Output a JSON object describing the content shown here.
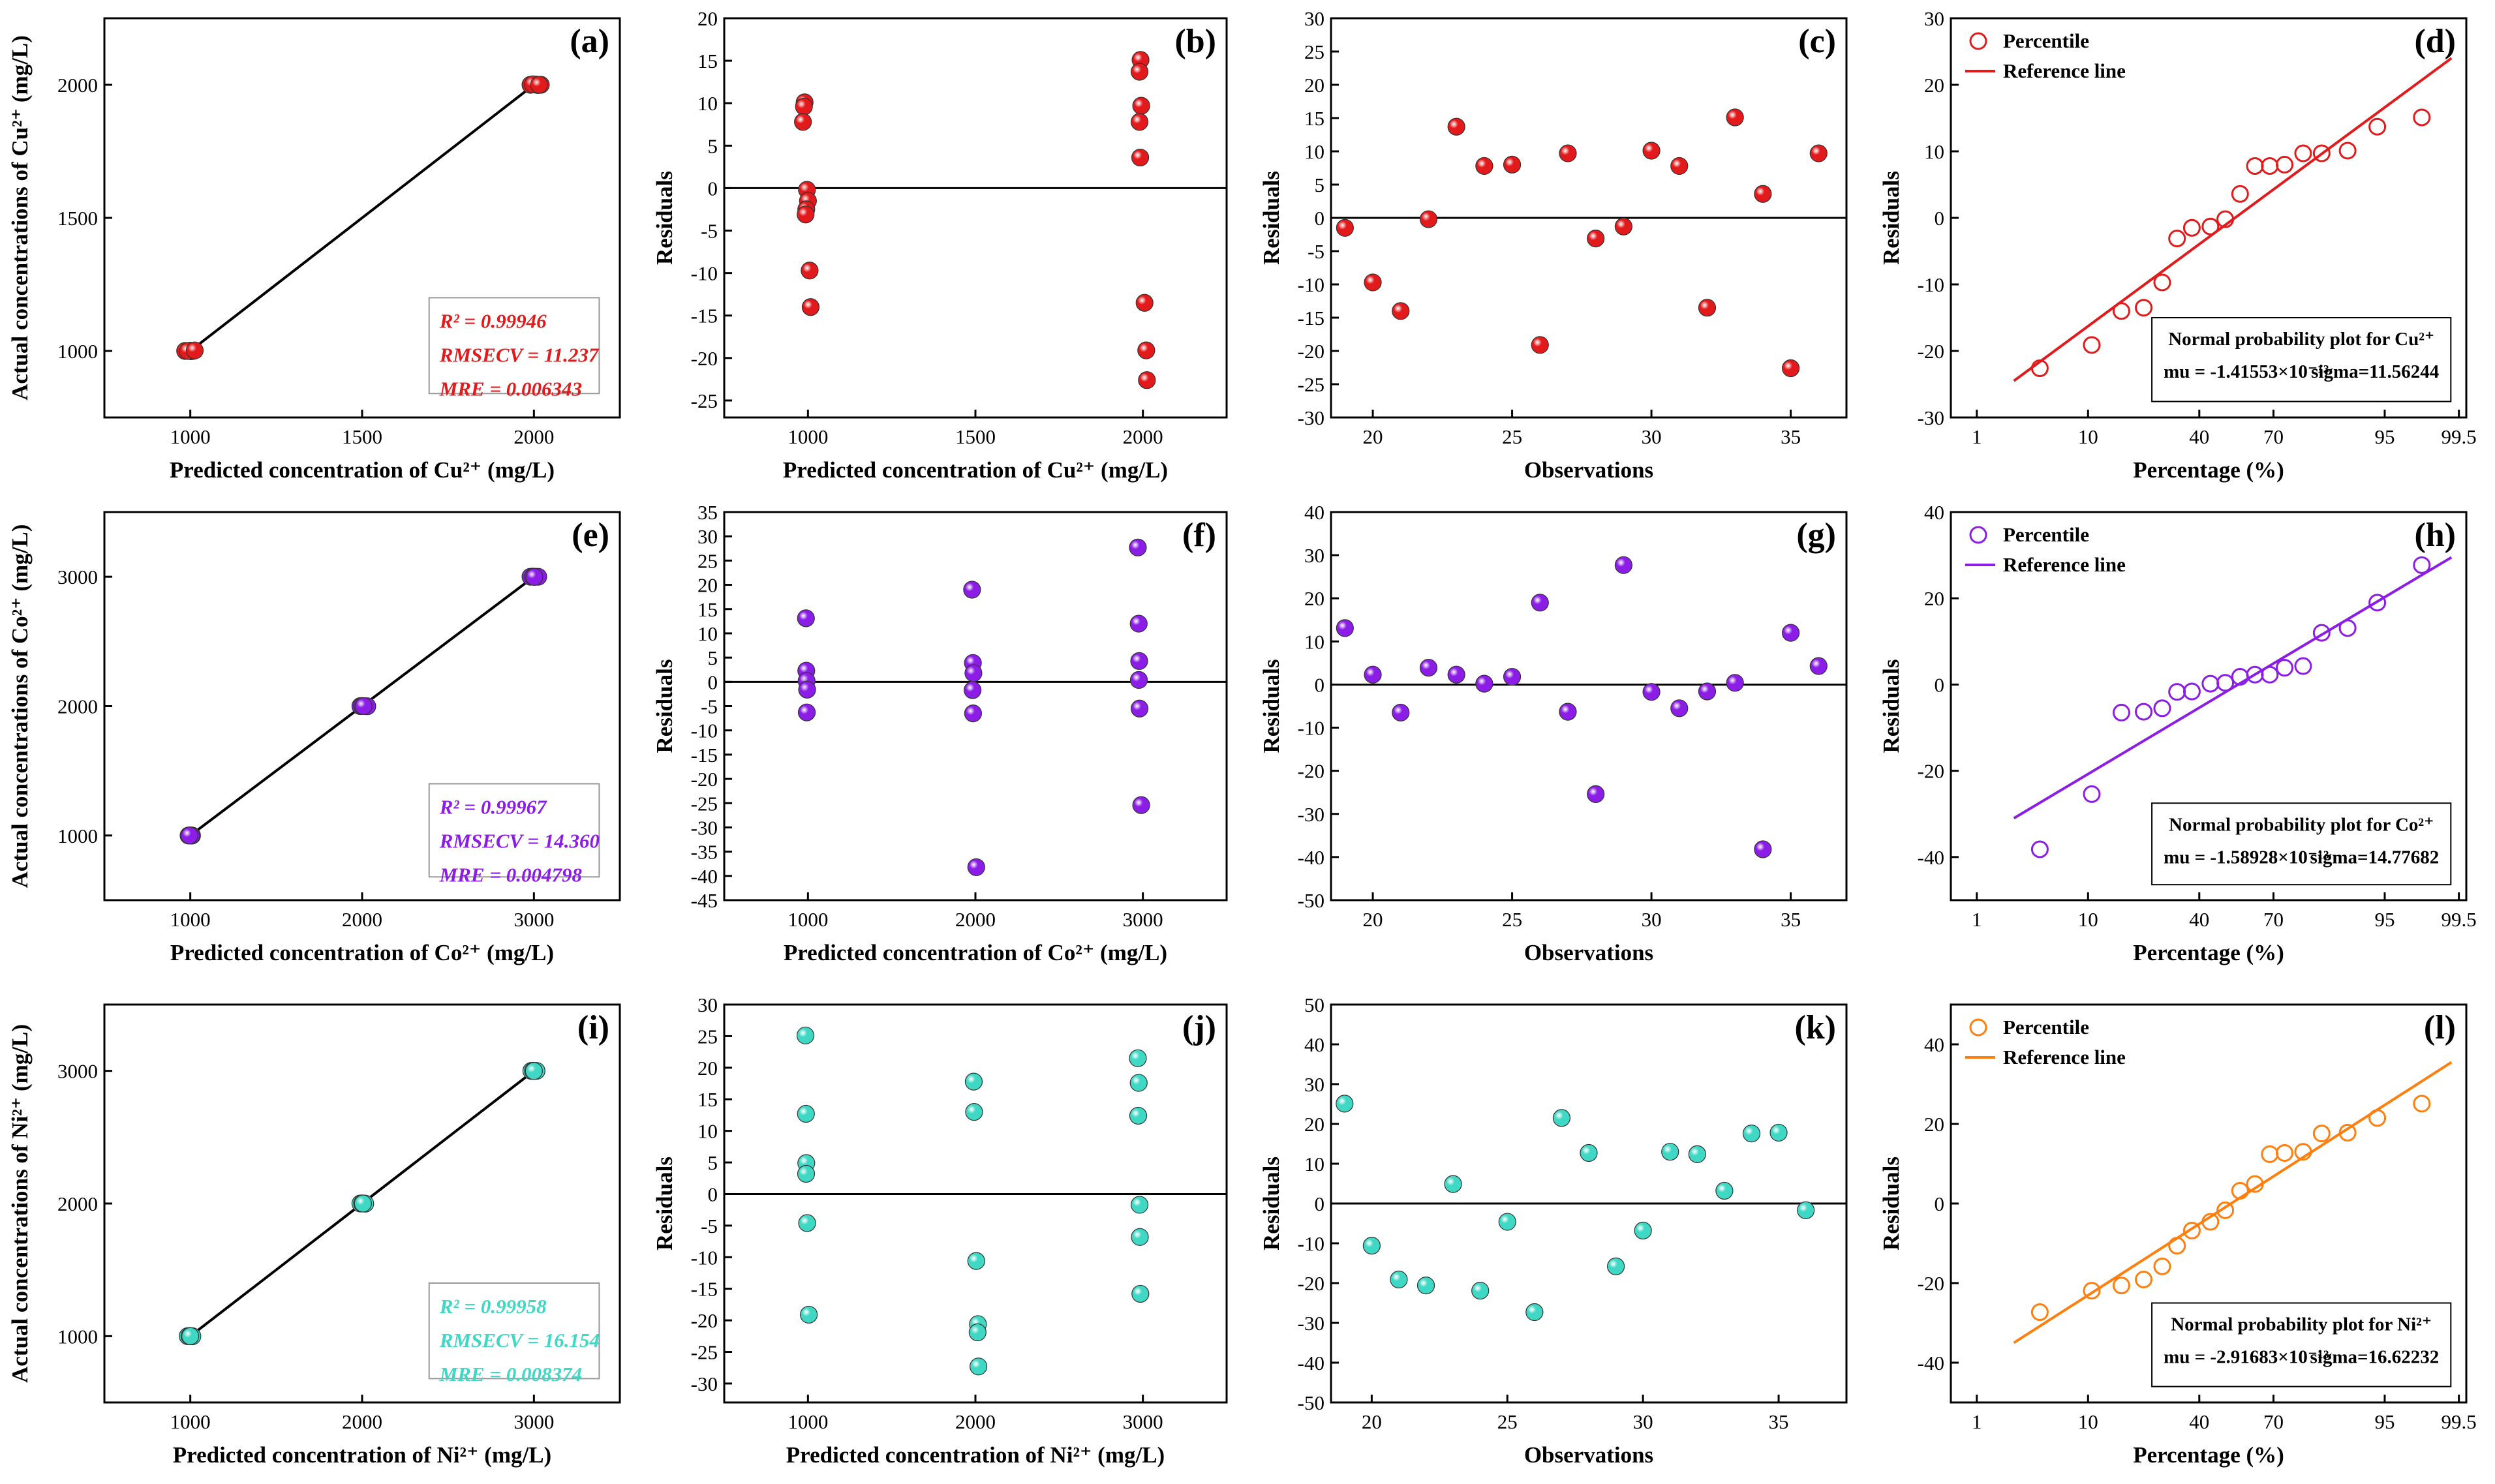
{
  "colors": {
    "cu": "#e31a1c",
    "co": "#8b1de6",
    "ni": "#3fd8c4",
    "ni_q": "#ff7f0e",
    "axis": "#000000"
  },
  "chart_data": [
    {
      "id": "a",
      "type": "scatter",
      "label": "(a)",
      "metal": "cu",
      "xlabel": "Predicted concentration of Cu²⁺ (mg/L)",
      "ylabel": "Actual concentrations of Cu²⁺ (mg/L)",
      "xlim": [
        750,
        2250
      ],
      "ylim": [
        750,
        2250
      ],
      "xticks": [
        1000,
        1500,
        2000
      ],
      "yticks": [
        1000,
        1500,
        2000
      ],
      "points": [
        [
          985,
          1000
        ],
        [
          1000,
          1001
        ],
        [
          1008,
          1000
        ],
        [
          1002,
          999
        ],
        [
          993,
          1000
        ],
        [
          1013,
          1002
        ],
        [
          1990,
          2000
        ],
        [
          2005,
          2001
        ],
        [
          2012,
          1999
        ],
        [
          2020,
          2000
        ],
        [
          1997,
          2002
        ],
        [
          2015,
          2000
        ]
      ],
      "fit_line": [
        [
          1000,
          1000
        ],
        [
          2000,
          2000
        ]
      ],
      "stats": [
        "R² = 0.99946",
        "RMSECV = 11.237",
        "MRE = 0.006343"
      ]
    },
    {
      "id": "b",
      "type": "scatter",
      "label": "(b)",
      "metal": "cu",
      "xlabel": "Predicted concentration of Cu²⁺ (mg/L)",
      "ylabel": "Residuals",
      "xlim": [
        750,
        2250
      ],
      "ylim": [
        -27,
        20
      ],
      "xticks": [
        1000,
        1500,
        2000
      ],
      "yticks": [
        -25,
        -20,
        -15,
        -10,
        -5,
        0,
        5,
        10,
        15,
        20
      ],
      "points": [
        [
          990,
          10.1
        ],
        [
          988,
          9.6
        ],
        [
          985,
          7.8
        ],
        [
          997,
          -0.2
        ],
        [
          1000,
          -1.5
        ],
        [
          995,
          -2.5
        ],
        [
          993,
          -3.1
        ],
        [
          1005,
          -9.7
        ],
        [
          1008,
          -14.0
        ],
        [
          1993,
          15.1
        ],
        [
          1990,
          13.7
        ],
        [
          1995,
          9.7
        ],
        [
          1990,
          7.8
        ],
        [
          1992,
          3.6
        ],
        [
          2005,
          -13.5
        ],
        [
          2010,
          -19.1
        ],
        [
          2012,
          -22.6
        ]
      ],
      "zero_line": true
    },
    {
      "id": "c",
      "type": "scatter",
      "label": "(c)",
      "metal": "cu",
      "xlabel": "Observations",
      "ylabel": "Residuals",
      "xlim": [
        18.5,
        37
      ],
      "ylim": [
        -30,
        30
      ],
      "xticks": [
        20,
        25,
        30,
        35
      ],
      "yticks": [
        -30,
        -25,
        -20,
        -15,
        -10,
        -5,
        0,
        5,
        10,
        15,
        20,
        25,
        30
      ],
      "points": [
        [
          19,
          -1.5
        ],
        [
          20,
          -9.7
        ],
        [
          21,
          -14.0
        ],
        [
          22,
          -0.2
        ],
        [
          23,
          13.7
        ],
        [
          24,
          7.8
        ],
        [
          25,
          8.0
        ],
        [
          26,
          -19.1
        ],
        [
          27,
          9.7
        ],
        [
          28,
          -3.1
        ],
        [
          29,
          -1.3
        ],
        [
          30,
          10.1
        ],
        [
          31,
          7.8
        ],
        [
          32,
          -13.5
        ],
        [
          33,
          15.1
        ],
        [
          34,
          3.6
        ],
        [
          35,
          -22.6
        ],
        [
          36,
          9.7
        ]
      ],
      "zero_line": true
    },
    {
      "id": "d",
      "type": "qq",
      "label": "(d)",
      "metal": "cu",
      "xlabel": "Percentage (%)",
      "ylabel": "Residuals",
      "xlim": [
        -0.7,
        13.2
      ],
      "ylim": [
        -30,
        30
      ],
      "xticks": [
        {
          "pos": 0,
          "label": "1"
        },
        {
          "pos": 3,
          "label": "10"
        },
        {
          "pos": 6,
          "label": "40"
        },
        {
          "pos": 8,
          "label": "70"
        },
        {
          "pos": 11,
          "label": "95"
        },
        {
          "pos": 13,
          "label": "99.5"
        }
      ],
      "yticks": [
        -30,
        -20,
        -10,
        0,
        10,
        20,
        30
      ],
      "points": [
        [
          1.7,
          -22.6
        ],
        [
          3.1,
          -19.1
        ],
        [
          3.9,
          -14.0
        ],
        [
          4.5,
          -13.5
        ],
        [
          5.0,
          -9.7
        ],
        [
          5.4,
          -3.1
        ],
        [
          5.8,
          -1.5
        ],
        [
          6.3,
          -1.3
        ],
        [
          6.7,
          -0.2
        ],
        [
          7.1,
          3.6
        ],
        [
          7.5,
          7.8
        ],
        [
          7.9,
          7.8
        ],
        [
          8.3,
          8.0
        ],
        [
          8.8,
          9.7
        ],
        [
          9.3,
          9.7
        ],
        [
          10.0,
          10.1
        ],
        [
          10.8,
          13.7
        ],
        [
          12.0,
          15.1
        ]
      ],
      "ref_line": [
        [
          1.0,
          -24.5
        ],
        [
          12.8,
          24.0
        ]
      ],
      "legend": {
        "percentile": "Percentile",
        "reference": "Reference line"
      },
      "npp": {
        "title": "Normal probability plot for Cu²⁺",
        "mu": "mu = -1.41553×10⁻¹³",
        "sigma": "sigma=11.56244"
      }
    },
    {
      "id": "e",
      "type": "scatter",
      "label": "(e)",
      "metal": "co",
      "xlabel": "Predicted concentration of Co²⁺ (mg/L)",
      "ylabel": "Actual concentrations of  Co²⁺ (mg/L)",
      "xlim": [
        500,
        3500
      ],
      "ylim": [
        500,
        3500
      ],
      "xticks": [
        1000,
        2000,
        3000
      ],
      "yticks": [
        1000,
        2000,
        3000
      ],
      "points": [
        [
          990,
          1000
        ],
        [
          1000,
          1001
        ],
        [
          1010,
          1000
        ],
        [
          1005,
          999
        ],
        [
          995,
          1000
        ],
        [
          1990,
          2000
        ],
        [
          2000,
          2001
        ],
        [
          2015,
          2000
        ],
        [
          2030,
          1999
        ],
        [
          2008,
          2000
        ],
        [
          2980,
          3000
        ],
        [
          2995,
          3001
        ],
        [
          3010,
          3000
        ],
        [
          3025,
          3000
        ],
        [
          3002,
          2999
        ]
      ],
      "fit_line": [
        [
          1000,
          1000
        ],
        [
          3000,
          3000
        ]
      ],
      "stats": [
        "R² = 0.99967",
        "RMSECV = 14.360",
        "MRE = 0.004798"
      ]
    },
    {
      "id": "f",
      "type": "scatter",
      "label": "(f)",
      "metal": "co",
      "xlabel": "Predicted concentration of Co²⁺ (mg/L)",
      "ylabel": "Residuals",
      "xlim": [
        500,
        3500
      ],
      "ylim": [
        -45,
        35
      ],
      "xticks": [
        1000,
        2000,
        3000
      ],
      "yticks": [
        -45,
        -40,
        -35,
        -30,
        -25,
        -20,
        -15,
        -10,
        -5,
        0,
        5,
        10,
        15,
        20,
        25,
        30,
        35
      ],
      "points": [
        [
          988,
          13.1
        ],
        [
          990,
          2.3
        ],
        [
          992,
          0.2
        ],
        [
          995,
          -1.6
        ],
        [
          993,
          -6.3
        ],
        [
          1980,
          19.0
        ],
        [
          1985,
          3.9
        ],
        [
          1988,
          1.8
        ],
        [
          1983,
          -1.7
        ],
        [
          1986,
          -6.5
        ],
        [
          2005,
          -38.2
        ],
        [
          2970,
          27.7
        ],
        [
          2975,
          12.0
        ],
        [
          2978,
          4.3
        ],
        [
          2976,
          0.4
        ],
        [
          2980,
          -5.5
        ],
        [
          2990,
          -25.4
        ]
      ],
      "zero_line": true
    },
    {
      "id": "g",
      "type": "scatter",
      "label": "(g)",
      "metal": "co",
      "xlabel": "Observations",
      "ylabel": "Residuals",
      "xlim": [
        18.5,
        37
      ],
      "ylim": [
        -50,
        40
      ],
      "xticks": [
        20,
        25,
        30,
        35
      ],
      "yticks": [
        -50,
        -40,
        -30,
        -20,
        -10,
        0,
        10,
        20,
        30,
        40
      ],
      "points": [
        [
          19,
          13.1
        ],
        [
          20,
          2.3
        ],
        [
          21,
          -6.5
        ],
        [
          22,
          3.9
        ],
        [
          23,
          2.3
        ],
        [
          24,
          0.2
        ],
        [
          25,
          1.8
        ],
        [
          26,
          19.0
        ],
        [
          27,
          -6.3
        ],
        [
          28,
          -25.4
        ],
        [
          29,
          27.7
        ],
        [
          30,
          -1.7
        ],
        [
          31,
          -5.5
        ],
        [
          32,
          -1.6
        ],
        [
          33,
          0.4
        ],
        [
          34,
          -38.2
        ],
        [
          35,
          12.0
        ],
        [
          36,
          4.3
        ]
      ],
      "zero_line": true
    },
    {
      "id": "h",
      "type": "qq",
      "label": "(h)",
      "metal": "co",
      "xlabel": "Percentage (%)",
      "ylabel": "Residuals",
      "xlim": [
        -0.7,
        13.2
      ],
      "ylim": [
        -50,
        40
      ],
      "xticks": [
        {
          "pos": 0,
          "label": "1"
        },
        {
          "pos": 3,
          "label": "10"
        },
        {
          "pos": 6,
          "label": "40"
        },
        {
          "pos": 8,
          "label": "70"
        },
        {
          "pos": 11,
          "label": "95"
        },
        {
          "pos": 13,
          "label": "99.5"
        }
      ],
      "yticks": [
        -40,
        -20,
        0,
        20,
        40
      ],
      "points": [
        [
          1.7,
          -38.2
        ],
        [
          3.1,
          -25.4
        ],
        [
          3.9,
          -6.5
        ],
        [
          4.5,
          -6.3
        ],
        [
          5.0,
          -5.5
        ],
        [
          5.4,
          -1.7
        ],
        [
          5.8,
          -1.6
        ],
        [
          6.3,
          0.2
        ],
        [
          6.7,
          0.4
        ],
        [
          7.1,
          1.8
        ],
        [
          7.5,
          2.3
        ],
        [
          7.9,
          2.3
        ],
        [
          8.3,
          3.9
        ],
        [
          8.8,
          4.3
        ],
        [
          9.3,
          12.0
        ],
        [
          10.0,
          13.1
        ],
        [
          10.8,
          19.0
        ],
        [
          12.0,
          27.7
        ]
      ],
      "ref_line": [
        [
          1.0,
          -31.0
        ],
        [
          12.8,
          29.5
        ]
      ],
      "legend": {
        "percentile": "Percentile",
        "reference": "Reference line"
      },
      "npp": {
        "title": "Normal probability plot for Co²⁺",
        "mu": "mu = -1.58928×10⁻¹³",
        "sigma": "sigma=14.77682"
      }
    },
    {
      "id": "i",
      "type": "scatter",
      "label": "(i)",
      "metal": "ni",
      "xlabel": "Predicted concentration of Ni²⁺ (mg/L)",
      "ylabel": "Actual concentrations of Ni²⁺ (mg/L)",
      "xlim": [
        500,
        3500
      ],
      "ylim": [
        500,
        3500
      ],
      "xticks": [
        1000,
        2000,
        3000
      ],
      "yticks": [
        1000,
        2000,
        3000
      ],
      "points": [
        [
          985,
          1000
        ],
        [
          995,
          1001
        ],
        [
          1005,
          1000
        ],
        [
          1012,
          999
        ],
        [
          1000,
          1000
        ],
        [
          1990,
          2000
        ],
        [
          2000,
          2001
        ],
        [
          2010,
          2000
        ],
        [
          2018,
          1999
        ],
        [
          2005,
          2000
        ],
        [
          2985,
          3000
        ],
        [
          2995,
          3001
        ],
        [
          3005,
          3000
        ],
        [
          3015,
          3000
        ],
        [
          3000,
          2999
        ]
      ],
      "fit_line": [
        [
          1000,
          1000
        ],
        [
          3000,
          3000
        ]
      ],
      "stats": [
        "R² = 0.99958",
        "RMSECV = 16.154",
        "MRE = 0.008374"
      ]
    },
    {
      "id": "j",
      "type": "scatter",
      "label": "(j)",
      "metal": "ni",
      "xlabel": "Predicted concentration of Ni²⁺ (mg/L)",
      "ylabel": "Residuals",
      "xlim": [
        500,
        3500
      ],
      "ylim": [
        -33,
        30
      ],
      "xticks": [
        1000,
        2000,
        3000
      ],
      "yticks": [
        -30,
        -25,
        -20,
        -15,
        -10,
        -5,
        0,
        5,
        10,
        15,
        20,
        25,
        30
      ],
      "points": [
        [
          985,
          25.1
        ],
        [
          988,
          12.7
        ],
        [
          990,
          4.9
        ],
        [
          989,
          3.2
        ],
        [
          995,
          -4.6
        ],
        [
          1005,
          -19.1
        ],
        [
          1990,
          17.8
        ],
        [
          1992,
          13.0
        ],
        [
          2005,
          -10.6
        ],
        [
          2015,
          -20.6
        ],
        [
          2013,
          -21.9
        ],
        [
          2018,
          -27.3
        ],
        [
          2970,
          21.5
        ],
        [
          2975,
          17.6
        ],
        [
          2972,
          12.4
        ],
        [
          2980,
          -1.7
        ],
        [
          2982,
          -6.8
        ],
        [
          2985,
          -15.8
        ]
      ],
      "zero_line": true
    },
    {
      "id": "k",
      "type": "scatter",
      "label": "(k)",
      "metal": "ni",
      "xlabel": "Observations",
      "ylabel": "Residuals",
      "xlim": [
        18.5,
        37.5
      ],
      "ylim": [
        -50,
        50
      ],
      "xticks": [
        20,
        25,
        30,
        35
      ],
      "yticks": [
        -50,
        -40,
        -30,
        -20,
        -10,
        0,
        10,
        20,
        30,
        40,
        50
      ],
      "points": [
        [
          19,
          25.1
        ],
        [
          20,
          -10.6
        ],
        [
          21,
          -19.1
        ],
        [
          22,
          -20.6
        ],
        [
          23,
          4.9
        ],
        [
          24,
          -21.9
        ],
        [
          25,
          -4.6
        ],
        [
          26,
          -27.3
        ],
        [
          27,
          21.5
        ],
        [
          28,
          12.7
        ],
        [
          29,
          -15.8
        ],
        [
          30,
          -6.8
        ],
        [
          31,
          13.0
        ],
        [
          32,
          12.4
        ],
        [
          33,
          3.2
        ],
        [
          34,
          17.6
        ],
        [
          35,
          17.8
        ],
        [
          36,
          -1.7
        ]
      ],
      "zero_line": true
    },
    {
      "id": "l",
      "type": "qq",
      "label": "(l)",
      "metal": "ni_q",
      "xlabel": "Percentage (%)",
      "ylabel": "Residuals",
      "xlim": [
        -0.7,
        13.2
      ],
      "ylim": [
        -50,
        50
      ],
      "xticks": [
        {
          "pos": 0,
          "label": "1"
        },
        {
          "pos": 3,
          "label": "10"
        },
        {
          "pos": 6,
          "label": "40"
        },
        {
          "pos": 8,
          "label": "70"
        },
        {
          "pos": 11,
          "label": "95"
        },
        {
          "pos": 13,
          "label": "99.5"
        }
      ],
      "yticks": [
        -40,
        -20,
        0,
        20,
        40
      ],
      "points": [
        [
          1.7,
          -27.3
        ],
        [
          3.1,
          -21.9
        ],
        [
          3.9,
          -20.6
        ],
        [
          4.5,
          -19.1
        ],
        [
          5.0,
          -15.8
        ],
        [
          5.4,
          -10.6
        ],
        [
          5.8,
          -6.8
        ],
        [
          6.3,
          -4.6
        ],
        [
          6.7,
          -1.7
        ],
        [
          7.1,
          3.2
        ],
        [
          7.5,
          4.9
        ],
        [
          7.9,
          12.4
        ],
        [
          8.3,
          12.7
        ],
        [
          8.8,
          13.0
        ],
        [
          9.3,
          17.6
        ],
        [
          10.0,
          17.8
        ],
        [
          10.8,
          21.5
        ],
        [
          12.0,
          25.1
        ]
      ],
      "ref_line": [
        [
          1.0,
          -35.0
        ],
        [
          12.8,
          35.5
        ]
      ],
      "legend": {
        "percentile": "Percentile",
        "reference": "Reference line"
      },
      "npp": {
        "title": "Normal probability plot for Ni²⁺",
        "mu": "mu = -2.91683×10⁻¹³",
        "sigma": "sigma=16.62232"
      }
    }
  ]
}
